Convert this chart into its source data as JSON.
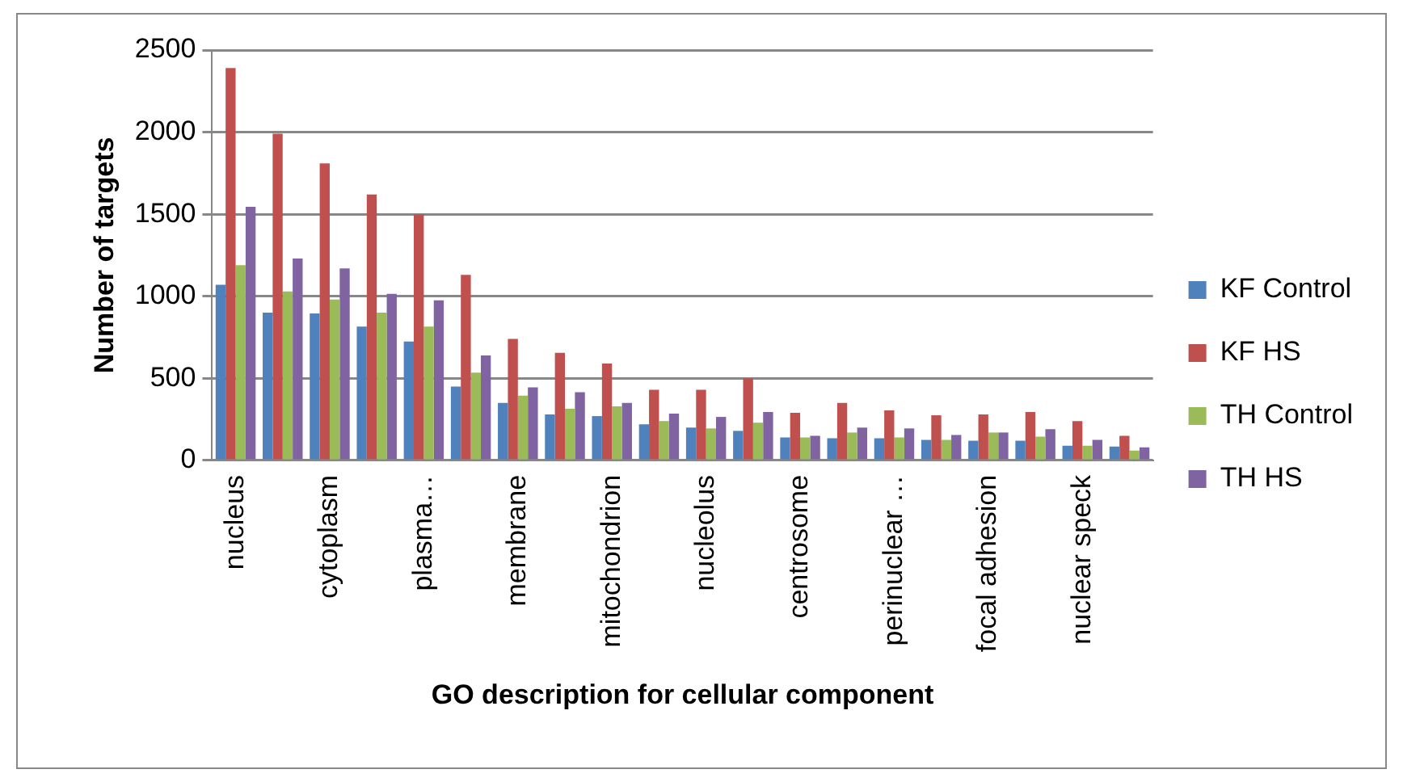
{
  "chart_data": {
    "type": "bar",
    "xlabel": "GO description for cellular component",
    "ylabel": "Number of targets",
    "categories": [
      "nucleus",
      null,
      "cytoplasm",
      null,
      "plasma…",
      null,
      "membrane",
      null,
      "mitochondrion",
      null,
      "nucleolus",
      null,
      "centrosome",
      null,
      "perinuclear …",
      null,
      "focal adhesion",
      null,
      "nuclear speck",
      null
    ],
    "series": [
      {
        "name": "KF Control",
        "color": "#4f81bd",
        "values": [
          1070,
          900,
          895,
          815,
          725,
          450,
          350,
          280,
          270,
          220,
          200,
          180,
          140,
          135,
          135,
          125,
          120,
          120,
          90,
          85
        ]
      },
      {
        "name": "KF HS",
        "color": "#c0504d",
        "values": [
          2390,
          1990,
          1810,
          1620,
          1500,
          1130,
          740,
          655,
          590,
          430,
          430,
          500,
          290,
          350,
          305,
          275,
          280,
          295,
          240,
          150
        ]
      },
      {
        "name": "TH Control",
        "color": "#9bbb59",
        "values": [
          1190,
          1030,
          980,
          900,
          815,
          535,
          395,
          315,
          330,
          240,
          195,
          230,
          140,
          170,
          140,
          125,
          170,
          145,
          90,
          60
        ]
      },
      {
        "name": "TH HS",
        "color": "#8064a2",
        "values": [
          1545,
          1230,
          1170,
          1015,
          975,
          640,
          445,
          415,
          350,
          285,
          265,
          295,
          150,
          200,
          195,
          155,
          170,
          190,
          125,
          80
        ]
      }
    ],
    "ylim": [
      0,
      2500
    ],
    "yticks": [
      0,
      500,
      1000,
      1500,
      2000,
      2500
    ],
    "grid": "y",
    "legend": "right"
  }
}
